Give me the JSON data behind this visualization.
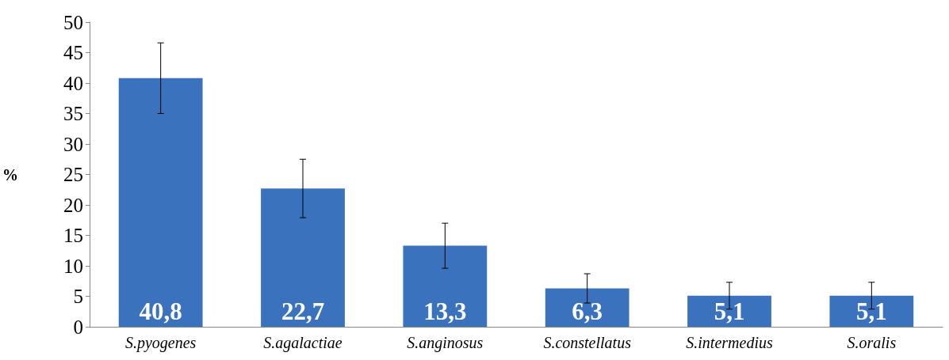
{
  "chart_data": {
    "type": "bar",
    "ylabel": "%",
    "categories": [
      "S.pyogenes",
      "S.agalactiae",
      "S.anginosus",
      "S.constellatus",
      "S.intermedius",
      "S.oralis"
    ],
    "values": [
      40.8,
      22.7,
      13.3,
      6.3,
      5.1,
      5.1
    ],
    "value_labels": [
      "40,8",
      "22,7",
      "13,3",
      "6,3",
      "5,1",
      "5,1"
    ],
    "errors": [
      5.8,
      4.8,
      3.7,
      2.4,
      2.2,
      2.2
    ],
    "color": "#3a72bd",
    "ylim": [
      0,
      50
    ],
    "yticks": [
      0,
      5,
      10,
      15,
      20,
      25,
      30,
      35,
      40,
      45,
      50
    ],
    "grid": false
  }
}
